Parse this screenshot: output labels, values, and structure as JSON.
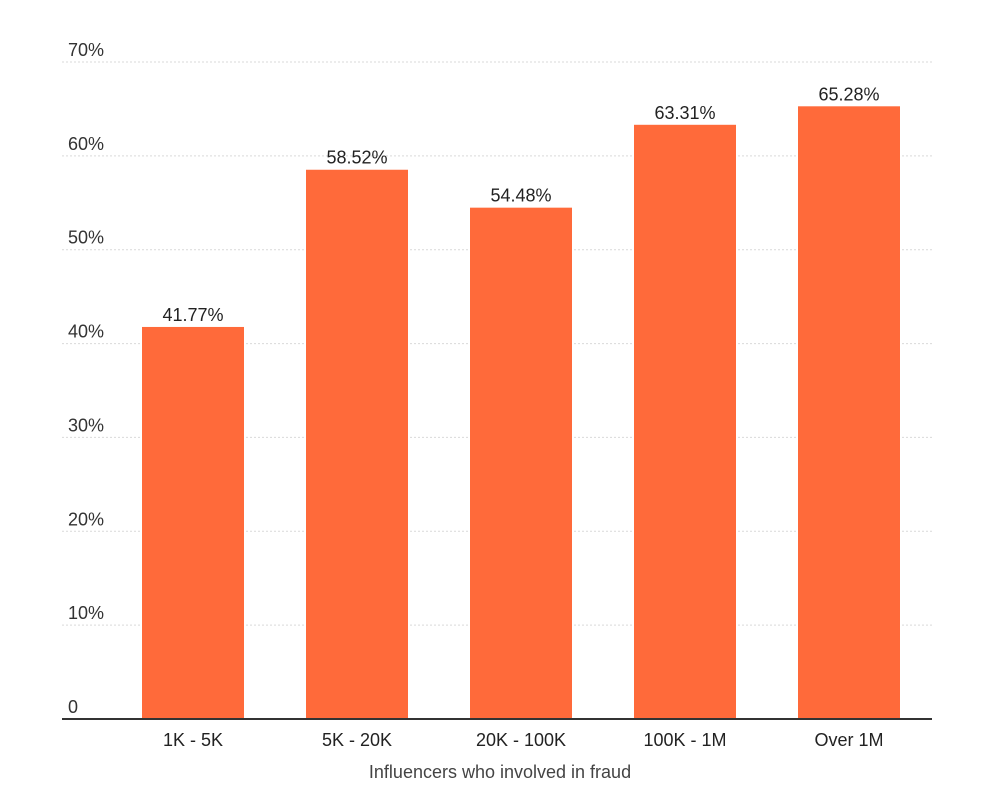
{
  "chart_data": {
    "type": "bar",
    "categories": [
      "1K - 5K",
      "5K - 20K",
      "20K - 100K",
      "100K - 1M",
      "Over 1M"
    ],
    "values": [
      41.77,
      58.52,
      54.48,
      63.31,
      65.28
    ],
    "data_labels": [
      "41.77%",
      "58.52%",
      "54.48%",
      "63.31%",
      "65.28%"
    ],
    "title": "",
    "xlabel": "Influencers who involved in fraud",
    "ylabel": "",
    "ylim": [
      0,
      70
    ],
    "yticks": [
      0,
      10,
      20,
      30,
      40,
      50,
      60,
      70
    ],
    "ytick_labels": [
      "0",
      "10%",
      "20%",
      "30%",
      "40%",
      "50%",
      "60%",
      "70%"
    ],
    "grid": true,
    "legend": "none",
    "bar_color": "#ff6a3a"
  }
}
